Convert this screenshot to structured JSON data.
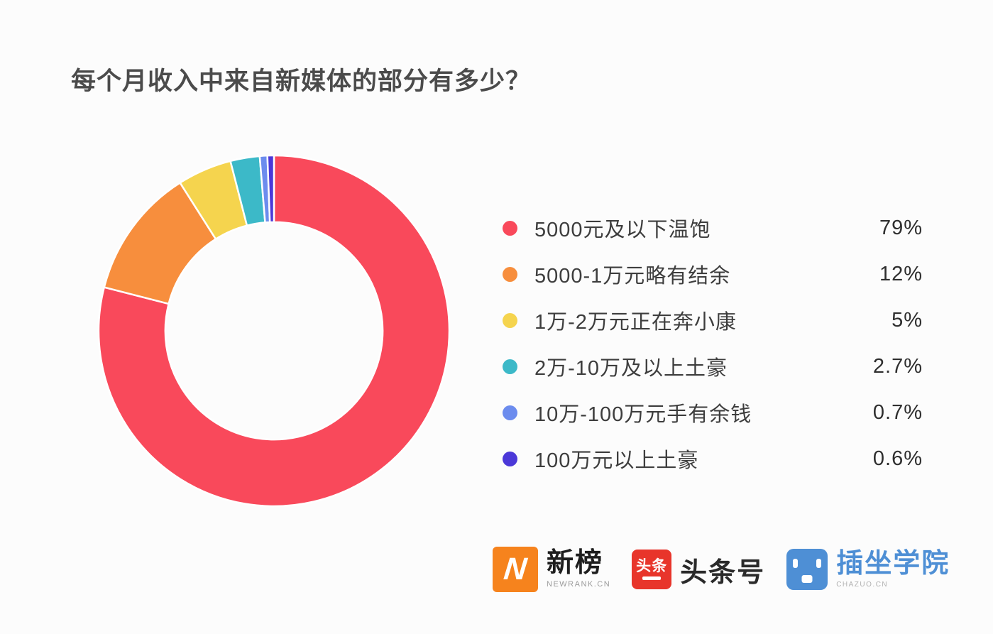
{
  "title": "每个月收入中来自新媒体的部分有多少？",
  "chart_data": {
    "type": "pie",
    "subtype": "donut",
    "title": "每个月收入中来自新媒体的部分有多少？",
    "categories": [
      "5000元及以下温饱",
      "5000-1万元略有结余",
      "1万-2万元正在奔小康",
      "2万-10万及以上土豪",
      "10万-100万元手有余钱",
      "100万元以上土豪"
    ],
    "values": [
      79,
      12,
      5,
      2.7,
      0.7,
      0.6
    ],
    "value_labels": [
      "79%",
      "12%",
      "5%",
      "2.7%",
      "0.7%",
      "0.6%"
    ],
    "colors": [
      "#f9495b",
      "#f78e3d",
      "#f5d44e",
      "#3cb9c8",
      "#6c8cee",
      "#4b38d8"
    ],
    "start_angle_deg_from_top": 0,
    "direction": "clockwise",
    "inner_radius_ratio": 0.62,
    "slice_gap_stroke": "#ffffff",
    "legend_position": "right"
  },
  "legend": {
    "items": [
      {
        "label": "5000元及以下温饱",
        "value": "79%",
        "color": "#f9495b"
      },
      {
        "label": "5000-1万元略有结余",
        "value": "12%",
        "color": "#f78e3d"
      },
      {
        "label": "1万-2万元正在奔小康",
        "value": "5%",
        "color": "#f5d44e"
      },
      {
        "label": "2万-10万及以上土豪",
        "value": "2.7%",
        "color": "#3cb9c8"
      },
      {
        "label": "10万-100万元手有余钱",
        "value": "0.7%",
        "color": "#6c8cee"
      },
      {
        "label": "100万元以上土豪",
        "value": "0.6%",
        "color": "#4b38d8"
      }
    ]
  },
  "footer": {
    "newrank": {
      "icon_letter": "N",
      "icon_bg": "#f6831d",
      "name": "新榜",
      "sub": "NEWRANK.CN"
    },
    "toutiao": {
      "icon_text": "头条",
      "icon_bg": "#e8352b",
      "name": "头条号"
    },
    "chazuo": {
      "icon_bg": "#4e8fd5",
      "name": "插坐学院",
      "sub": "CHAZUO.CN"
    }
  }
}
